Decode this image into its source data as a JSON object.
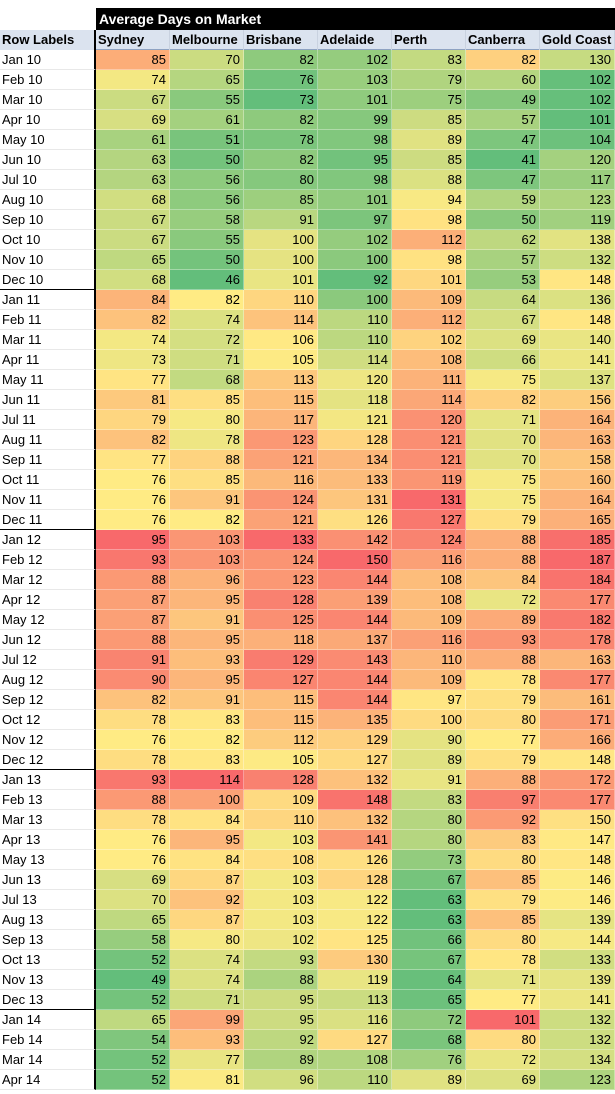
{
  "title": "Average Days on Market",
  "row_labels_header": "Row Labels",
  "columns": [
    "Sydney",
    "Melbourne",
    "Brisbane",
    "Adelaide",
    "Perth",
    "Canberra",
    "Gold Coast"
  ],
  "rows": [
    {
      "label": "Jan 10",
      "values": [
        85,
        70,
        82,
        102,
        83,
        82,
        130
      ]
    },
    {
      "label": "Feb 10",
      "values": [
        74,
        65,
        76,
        103,
        79,
        60,
        102
      ]
    },
    {
      "label": "Mar 10",
      "values": [
        67,
        55,
        73,
        101,
        75,
        49,
        102
      ]
    },
    {
      "label": "Apr 10",
      "values": [
        69,
        61,
        82,
        99,
        85,
        57,
        101
      ]
    },
    {
      "label": "May 10",
      "values": [
        61,
        51,
        78,
        98,
        89,
        47,
        104
      ]
    },
    {
      "label": "Jun 10",
      "values": [
        63,
        50,
        82,
        95,
        85,
        41,
        120
      ]
    },
    {
      "label": "Jul 10",
      "values": [
        63,
        56,
        80,
        98,
        88,
        47,
        117
      ]
    },
    {
      "label": "Aug 10",
      "values": [
        68,
        56,
        85,
        101,
        94,
        59,
        123
      ]
    },
    {
      "label": "Sep 10",
      "values": [
        67,
        58,
        91,
        97,
        98,
        50,
        119
      ]
    },
    {
      "label": "Oct 10",
      "values": [
        67,
        55,
        100,
        102,
        112,
        62,
        138
      ]
    },
    {
      "label": "Nov 10",
      "values": [
        65,
        50,
        100,
        100,
        98,
        57,
        132
      ]
    },
    {
      "label": "Dec 10",
      "values": [
        68,
        46,
        101,
        92,
        101,
        53,
        148
      ]
    },
    {
      "label": "Jan 11",
      "values": [
        84,
        82,
        110,
        100,
        109,
        64,
        136
      ]
    },
    {
      "label": "Feb 11",
      "values": [
        82,
        74,
        114,
        110,
        112,
        67,
        148
      ]
    },
    {
      "label": "Mar 11",
      "values": [
        74,
        72,
        106,
        110,
        102,
        69,
        140
      ]
    },
    {
      "label": "Apr 11",
      "values": [
        73,
        71,
        105,
        114,
        108,
        66,
        141
      ]
    },
    {
      "label": "May 11",
      "values": [
        77,
        68,
        113,
        120,
        111,
        75,
        137
      ]
    },
    {
      "label": "Jun 11",
      "values": [
        81,
        85,
        115,
        118,
        114,
        82,
        156
      ]
    },
    {
      "label": "Jul 11",
      "values": [
        79,
        80,
        117,
        121,
        120,
        71,
        164
      ]
    },
    {
      "label": "Aug 11",
      "values": [
        82,
        78,
        123,
        128,
        121,
        70,
        163
      ]
    },
    {
      "label": "Sep 11",
      "values": [
        77,
        88,
        121,
        134,
        121,
        70,
        158
      ]
    },
    {
      "label": "Oct 11",
      "values": [
        76,
        85,
        116,
        133,
        119,
        75,
        160
      ]
    },
    {
      "label": "Nov 11",
      "values": [
        76,
        91,
        124,
        131,
        131,
        75,
        164
      ]
    },
    {
      "label": "Dec 11",
      "values": [
        76,
        82,
        121,
        126,
        127,
        79,
        165
      ]
    },
    {
      "label": "Jan 12",
      "values": [
        95,
        103,
        133,
        142,
        124,
        88,
        185
      ]
    },
    {
      "label": "Feb 12",
      "values": [
        93,
        103,
        124,
        150,
        116,
        88,
        187
      ]
    },
    {
      "label": "Mar 12",
      "values": [
        88,
        96,
        123,
        144,
        108,
        84,
        184
      ]
    },
    {
      "label": "Apr 12",
      "values": [
        87,
        95,
        128,
        139,
        108,
        72,
        177
      ]
    },
    {
      "label": "May 12",
      "values": [
        87,
        91,
        125,
        144,
        109,
        89,
        182
      ]
    },
    {
      "label": "Jun 12",
      "values": [
        88,
        95,
        118,
        137,
        116,
        93,
        178
      ]
    },
    {
      "label": "Jul 12",
      "values": [
        91,
        93,
        129,
        143,
        110,
        88,
        163
      ]
    },
    {
      "label": "Aug 12",
      "values": [
        90,
        95,
        127,
        144,
        109,
        78,
        177
      ]
    },
    {
      "label": "Sep 12",
      "values": [
        82,
        91,
        115,
        144,
        97,
        79,
        161
      ]
    },
    {
      "label": "Oct 12",
      "values": [
        78,
        83,
        115,
        135,
        100,
        80,
        171
      ]
    },
    {
      "label": "Nov 12",
      "values": [
        76,
        82,
        112,
        129,
        90,
        77,
        166
      ]
    },
    {
      "label": "Dec 12",
      "values": [
        78,
        83,
        105,
        127,
        89,
        79,
        148
      ]
    },
    {
      "label": "Jan 13",
      "values": [
        93,
        114,
        128,
        132,
        91,
        88,
        172
      ]
    },
    {
      "label": "Feb 13",
      "values": [
        88,
        100,
        109,
        148,
        83,
        97,
        177
      ]
    },
    {
      "label": "Mar 13",
      "values": [
        78,
        84,
        110,
        132,
        80,
        92,
        150
      ]
    },
    {
      "label": "Apr 13",
      "values": [
        76,
        95,
        103,
        141,
        80,
        83,
        147
      ]
    },
    {
      "label": "May 13",
      "values": [
        76,
        84,
        108,
        126,
        73,
        80,
        148
      ]
    },
    {
      "label": "Jun 13",
      "values": [
        69,
        87,
        103,
        128,
        67,
        85,
        146
      ]
    },
    {
      "label": "Jul 13",
      "values": [
        70,
        92,
        103,
        122,
        63,
        79,
        146
      ]
    },
    {
      "label": "Aug 13",
      "values": [
        65,
        87,
        103,
        122,
        63,
        85,
        139
      ]
    },
    {
      "label": "Sep 13",
      "values": [
        58,
        80,
        102,
        125,
        66,
        80,
        144
      ]
    },
    {
      "label": "Oct 13",
      "values": [
        52,
        74,
        93,
        130,
        67,
        78,
        133
      ]
    },
    {
      "label": "Nov 13",
      "values": [
        49,
        74,
        88,
        119,
        64,
        71,
        139
      ]
    },
    {
      "label": "Dec 13",
      "values": [
        52,
        71,
        95,
        113,
        65,
        77,
        141
      ]
    },
    {
      "label": "Jan 14",
      "values": [
        65,
        99,
        95,
        116,
        72,
        101,
        132
      ]
    },
    {
      "label": "Feb 14",
      "values": [
        54,
        93,
        92,
        127,
        68,
        80,
        132
      ]
    },
    {
      "label": "Mar 14",
      "values": [
        52,
        77,
        89,
        108,
        76,
        72,
        134
      ]
    },
    {
      "label": "Apr 14",
      "values": [
        52,
        81,
        96,
        110,
        89,
        69,
        123
      ]
    }
  ],
  "color_scale": {
    "low": "#63be7b",
    "mid": "#ffeb84",
    "high": "#f8696b"
  }
}
